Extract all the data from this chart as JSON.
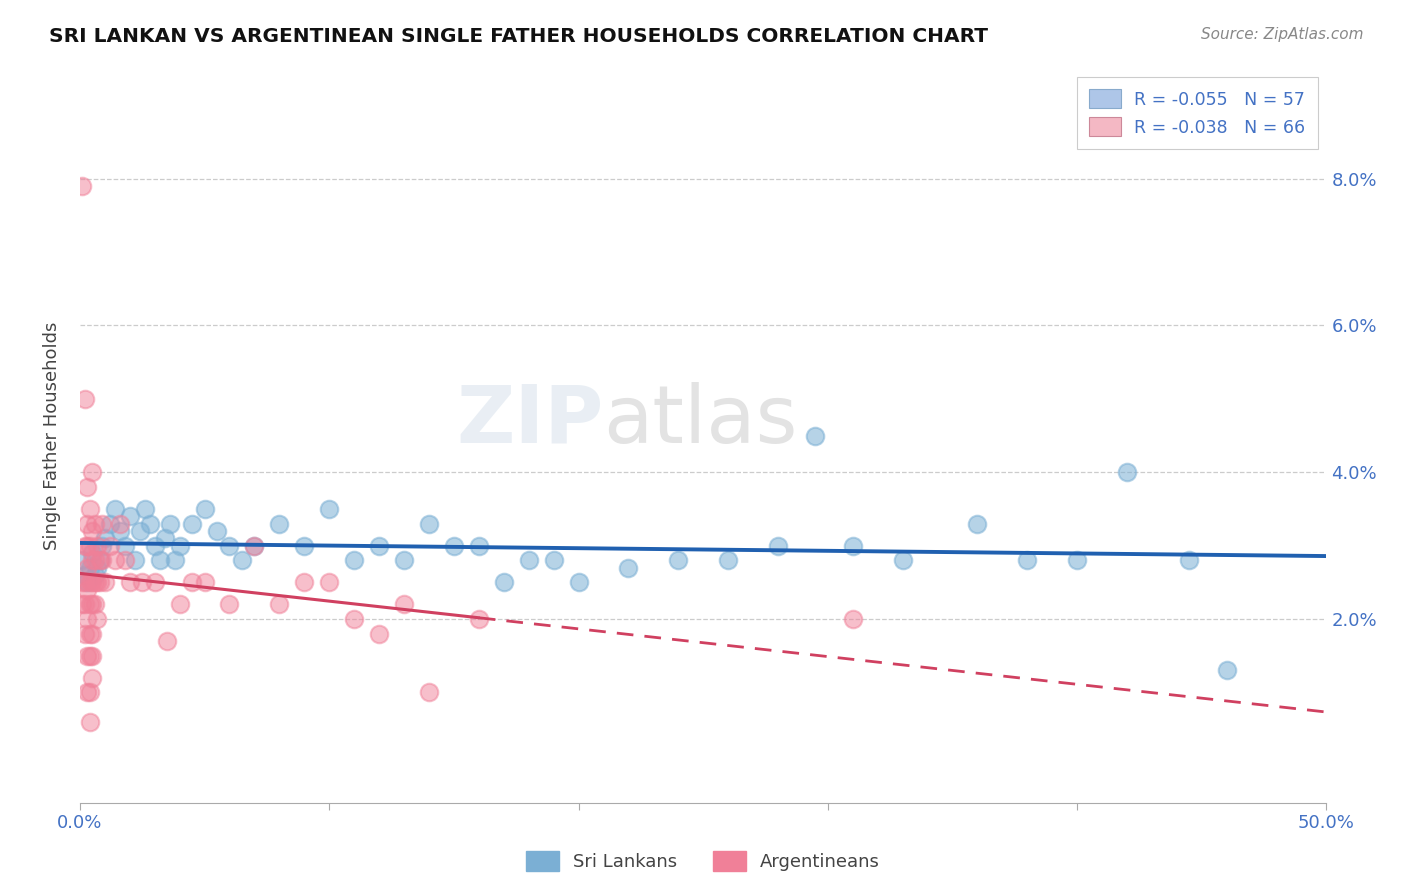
{
  "title": "SRI LANKAN VS ARGENTINEAN SINGLE FATHER HOUSEHOLDS CORRELATION CHART",
  "source": "Source: ZipAtlas.com",
  "ylabel": "Single Father Households",
  "xlim": [
    0.0,
    0.5
  ],
  "ylim": [
    -0.005,
    0.095
  ],
  "xticks": [
    0.0,
    0.1,
    0.2,
    0.3,
    0.4,
    0.5
  ],
  "xticklabels": [
    "0.0%",
    "",
    "",
    "",
    "",
    "50.0%"
  ],
  "yticks": [
    0.02,
    0.04,
    0.06,
    0.08
  ],
  "yticklabels": [
    "2.0%",
    "4.0%",
    "6.0%",
    "8.0%"
  ],
  "legend_entries": [
    {
      "label": "R = -0.055   N = 57",
      "color": "#aec6e8"
    },
    {
      "label": "R = -0.038   N = 66",
      "color": "#f4b8c4"
    }
  ],
  "bottom_legend": [
    "Sri Lankans",
    "Argentineans"
  ],
  "sri_lankan_color": "#7bafd4",
  "argentinean_color": "#f08098",
  "sri_lankan_line_color": "#2060b0",
  "argentinean_line_color": "#d04060",
  "watermark_zip": "ZIP",
  "watermark_atlas": "atlas",
  "sri_lankans": [
    [
      0.001,
      0.028
    ],
    [
      0.002,
      0.026
    ],
    [
      0.003,
      0.025
    ],
    [
      0.004,
      0.027
    ],
    [
      0.005,
      0.029
    ],
    [
      0.006,
      0.026
    ],
    [
      0.007,
      0.027
    ],
    [
      0.008,
      0.028
    ],
    [
      0.009,
      0.03
    ],
    [
      0.01,
      0.031
    ],
    [
      0.012,
      0.033
    ],
    [
      0.014,
      0.035
    ],
    [
      0.016,
      0.032
    ],
    [
      0.018,
      0.03
    ],
    [
      0.02,
      0.034
    ],
    [
      0.022,
      0.028
    ],
    [
      0.024,
      0.032
    ],
    [
      0.026,
      0.035
    ],
    [
      0.028,
      0.033
    ],
    [
      0.03,
      0.03
    ],
    [
      0.032,
      0.028
    ],
    [
      0.034,
      0.031
    ],
    [
      0.036,
      0.033
    ],
    [
      0.038,
      0.028
    ],
    [
      0.04,
      0.03
    ],
    [
      0.045,
      0.033
    ],
    [
      0.05,
      0.035
    ],
    [
      0.055,
      0.032
    ],
    [
      0.06,
      0.03
    ],
    [
      0.065,
      0.028
    ],
    [
      0.07,
      0.03
    ],
    [
      0.08,
      0.033
    ],
    [
      0.09,
      0.03
    ],
    [
      0.1,
      0.035
    ],
    [
      0.11,
      0.028
    ],
    [
      0.12,
      0.03
    ],
    [
      0.13,
      0.028
    ],
    [
      0.14,
      0.033
    ],
    [
      0.15,
      0.03
    ],
    [
      0.16,
      0.03
    ],
    [
      0.17,
      0.025
    ],
    [
      0.18,
      0.028
    ],
    [
      0.19,
      0.028
    ],
    [
      0.2,
      0.025
    ],
    [
      0.22,
      0.027
    ],
    [
      0.24,
      0.028
    ],
    [
      0.26,
      0.028
    ],
    [
      0.28,
      0.03
    ],
    [
      0.295,
      0.045
    ],
    [
      0.31,
      0.03
    ],
    [
      0.33,
      0.028
    ],
    [
      0.36,
      0.033
    ],
    [
      0.38,
      0.028
    ],
    [
      0.4,
      0.028
    ],
    [
      0.42,
      0.04
    ],
    [
      0.445,
      0.028
    ],
    [
      0.46,
      0.013
    ]
  ],
  "argentineans": [
    [
      0.001,
      0.079
    ],
    [
      0.001,
      0.025
    ],
    [
      0.001,
      0.022
    ],
    [
      0.002,
      0.05
    ],
    [
      0.002,
      0.03
    ],
    [
      0.002,
      0.025
    ],
    [
      0.002,
      0.022
    ],
    [
      0.002,
      0.018
    ],
    [
      0.003,
      0.038
    ],
    [
      0.003,
      0.033
    ],
    [
      0.003,
      0.03
    ],
    [
      0.003,
      0.027
    ],
    [
      0.003,
      0.024
    ],
    [
      0.003,
      0.02
    ],
    [
      0.003,
      0.015
    ],
    [
      0.003,
      0.01
    ],
    [
      0.004,
      0.035
    ],
    [
      0.004,
      0.03
    ],
    [
      0.004,
      0.025
    ],
    [
      0.004,
      0.022
    ],
    [
      0.004,
      0.018
    ],
    [
      0.004,
      0.015
    ],
    [
      0.004,
      0.01
    ],
    [
      0.004,
      0.006
    ],
    [
      0.005,
      0.04
    ],
    [
      0.005,
      0.032
    ],
    [
      0.005,
      0.028
    ],
    [
      0.005,
      0.025
    ],
    [
      0.005,
      0.022
    ],
    [
      0.005,
      0.018
    ],
    [
      0.005,
      0.015
    ],
    [
      0.005,
      0.012
    ],
    [
      0.006,
      0.033
    ],
    [
      0.006,
      0.028
    ],
    [
      0.006,
      0.025
    ],
    [
      0.006,
      0.022
    ],
    [
      0.007,
      0.03
    ],
    [
      0.007,
      0.025
    ],
    [
      0.007,
      0.02
    ],
    [
      0.008,
      0.028
    ],
    [
      0.008,
      0.025
    ],
    [
      0.009,
      0.033
    ],
    [
      0.009,
      0.028
    ],
    [
      0.01,
      0.025
    ],
    [
      0.012,
      0.03
    ],
    [
      0.014,
      0.028
    ],
    [
      0.016,
      0.033
    ],
    [
      0.018,
      0.028
    ],
    [
      0.02,
      0.025
    ],
    [
      0.025,
      0.025
    ],
    [
      0.03,
      0.025
    ],
    [
      0.035,
      0.017
    ],
    [
      0.04,
      0.022
    ],
    [
      0.045,
      0.025
    ],
    [
      0.05,
      0.025
    ],
    [
      0.06,
      0.022
    ],
    [
      0.07,
      0.03
    ],
    [
      0.08,
      0.022
    ],
    [
      0.09,
      0.025
    ],
    [
      0.1,
      0.025
    ],
    [
      0.11,
      0.02
    ],
    [
      0.12,
      0.018
    ],
    [
      0.13,
      0.022
    ],
    [
      0.14,
      0.01
    ],
    [
      0.16,
      0.02
    ],
    [
      0.31,
      0.02
    ]
  ]
}
